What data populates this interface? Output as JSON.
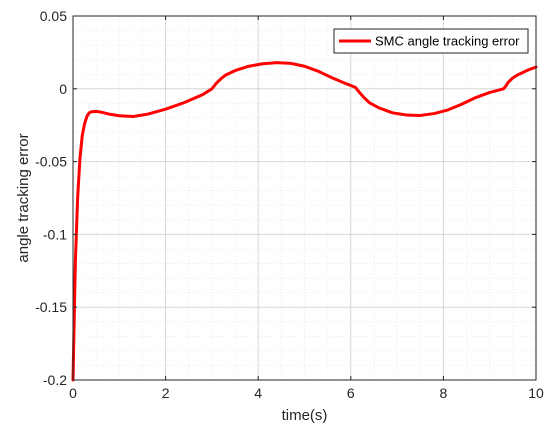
{
  "chart_data": {
    "type": "line",
    "title": "",
    "xlabel": "time(s)",
    "ylabel": "angle tracking error",
    "xlim": [
      0,
      10
    ],
    "ylim": [
      -0.2,
      0.05
    ],
    "xticks": [
      0,
      2,
      4,
      6,
      8,
      10
    ],
    "xtick_labels": [
      "0",
      "2",
      "4",
      "6",
      "8",
      "10"
    ],
    "yticks": [
      0.05,
      0,
      -0.05,
      -0.1,
      -0.15,
      -0.2
    ],
    "ytick_labels": [
      "0.05",
      "0",
      "-0.05",
      "-0.1",
      "-0.15",
      "-0.2"
    ],
    "grid": true,
    "minor_grid": true,
    "legend_position": "top-right",
    "series": [
      {
        "name": "SMC angle tracking error",
        "color": "#ff0000",
        "x": [
          0,
          0.05,
          0.1,
          0.15,
          0.2,
          0.25,
          0.3,
          0.35,
          0.4,
          0.5,
          0.6,
          0.8,
          1.0,
          1.3,
          1.6,
          2.0,
          2.4,
          2.8,
          3.0,
          3.05,
          3.1,
          3.2,
          3.3,
          3.5,
          3.8,
          4.1,
          4.4,
          4.7,
          5.0,
          5.3,
          5.6,
          5.9,
          6.1,
          6.15,
          6.2,
          6.3,
          6.4,
          6.6,
          6.9,
          7.2,
          7.5,
          7.8,
          8.1,
          8.4,
          8.7,
          9.0,
          9.3,
          9.35,
          9.4,
          9.5,
          9.6,
          9.8,
          10.0
        ],
        "y": [
          -0.2,
          -0.12,
          -0.075,
          -0.048,
          -0.032,
          -0.024,
          -0.019,
          -0.0165,
          -0.0158,
          -0.0155,
          -0.016,
          -0.0175,
          -0.0185,
          -0.019,
          -0.0175,
          -0.014,
          -0.0095,
          -0.004,
          0.0,
          0.002,
          0.004,
          0.007,
          0.0095,
          0.0125,
          0.0155,
          0.0172,
          0.018,
          0.0175,
          0.0155,
          0.012,
          0.0075,
          0.0035,
          0.001,
          -0.001,
          -0.003,
          -0.0065,
          -0.0095,
          -0.013,
          -0.0165,
          -0.018,
          -0.0183,
          -0.017,
          -0.0145,
          -0.0105,
          -0.006,
          -0.0025,
          0.0,
          0.002,
          0.0045,
          0.0075,
          0.0095,
          0.0125,
          0.015
        ]
      }
    ]
  }
}
